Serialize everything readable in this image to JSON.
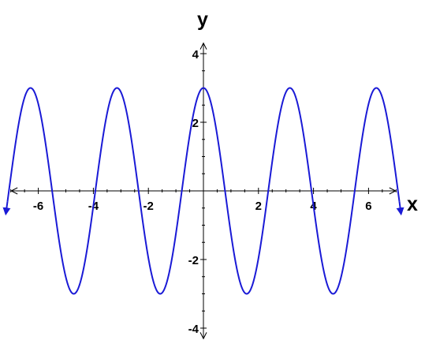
{
  "chart_data": {
    "type": "line",
    "title": "",
    "xlabel": "x",
    "ylabel": "y",
    "xlim": [
      -7.1,
      7.1
    ],
    "ylim": [
      -4.4,
      4.4
    ],
    "x_ticks": [
      -6,
      -4,
      -2,
      2,
      4,
      6
    ],
    "y_ticks": [
      -4,
      -2,
      2,
      4
    ],
    "x_tick_labels": [
      "-6",
      "-4",
      "-2",
      "2",
      "4",
      "6"
    ],
    "y_tick_labels": [
      "-4",
      "-2",
      "2",
      "4"
    ],
    "grid": false,
    "axis_arrows": true,
    "curve_end_arrows": true,
    "series": [
      {
        "function": "3*cos(2x)",
        "amplitude": 3,
        "angular_frequency": 2,
        "domain": [
          -7.12,
          7.12
        ],
        "color": "#1a1ad6",
        "x": [
          -6.2832,
          -4.7124,
          -3.1416,
          -1.5708,
          0,
          1.5708,
          3.1416,
          4.7124,
          6.2832
        ],
        "y": [
          3,
          -3,
          3,
          -3,
          3,
          -3,
          3,
          -3,
          3
        ]
      }
    ]
  }
}
